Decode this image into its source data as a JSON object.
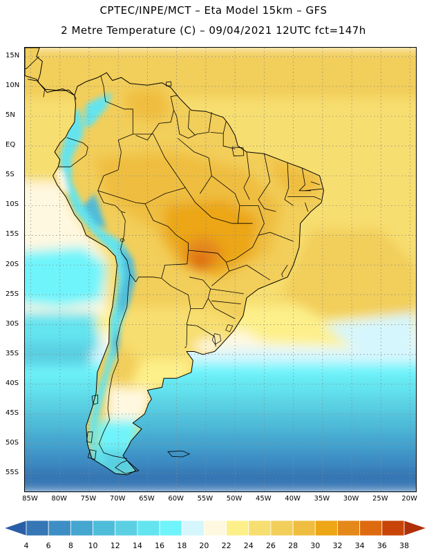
{
  "header": {
    "title_line1": "CPTEC/INPE/MCT –  Eta Model 15km – GFS",
    "title_line2": "2 Metre Temperature (C) – 09/04/2021 12UTC fct=147h"
  },
  "map": {
    "lon_range": [
      -86,
      -19
    ],
    "lat_range": [
      -58,
      16.5
    ],
    "lat_ticks": [
      {
        "value": 15,
        "label": "15N"
      },
      {
        "value": 10,
        "label": "10N"
      },
      {
        "value": 5,
        "label": "5N"
      },
      {
        "value": 0,
        "label": "EQ"
      },
      {
        "value": -5,
        "label": "5S"
      },
      {
        "value": -10,
        "label": "10S"
      },
      {
        "value": -15,
        "label": "15S"
      },
      {
        "value": -20,
        "label": "20S"
      },
      {
        "value": -25,
        "label": "25S"
      },
      {
        "value": -30,
        "label": "30S"
      },
      {
        "value": -35,
        "label": "35S"
      },
      {
        "value": -40,
        "label": "40S"
      },
      {
        "value": -45,
        "label": "45S"
      },
      {
        "value": -50,
        "label": "50S"
      },
      {
        "value": -55,
        "label": "55S"
      }
    ],
    "lon_ticks": [
      {
        "value": -85,
        "label": "85W"
      },
      {
        "value": -80,
        "label": "80W"
      },
      {
        "value": -75,
        "label": "75W"
      },
      {
        "value": -70,
        "label": "70W"
      },
      {
        "value": -65,
        "label": "65W"
      },
      {
        "value": -60,
        "label": "60W"
      },
      {
        "value": -55,
        "label": "55W"
      },
      {
        "value": -50,
        "label": "50W"
      },
      {
        "value": -45,
        "label": "45W"
      },
      {
        "value": -40,
        "label": "40W"
      },
      {
        "value": -35,
        "label": "35W"
      },
      {
        "value": -30,
        "label": "30W"
      },
      {
        "value": -25,
        "label": "25W"
      },
      {
        "value": -20,
        "label": "20W"
      }
    ]
  },
  "legend": {
    "levels": [
      "4",
      "6",
      "8",
      "10",
      "12",
      "14",
      "16",
      "18",
      "20",
      "22",
      "24",
      "26",
      "28",
      "30",
      "32",
      "34",
      "36",
      "38"
    ],
    "colors": [
      "#2a5ea6",
      "#3576b4",
      "#3d8ec4",
      "#45a6cf",
      "#4fbcd9",
      "#5ad0e2",
      "#64e4ef",
      "#6ff4fb",
      "#d6f6fd",
      "#fff8e0",
      "#fdf08a",
      "#f7de70",
      "#f2ce5a",
      "#efbe40",
      "#eca616",
      "#e4881a",
      "#de6a10",
      "#c84408",
      "#b03008"
    ]
  },
  "colors": {
    "ocean_warm": "#f7de70",
    "ocean_cold": "#45a6cf",
    "land_hot": "#eca616"
  }
}
